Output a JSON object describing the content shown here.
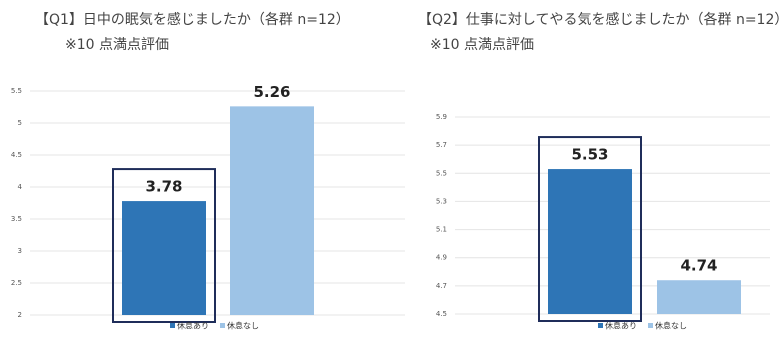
{
  "chart_data": [
    {
      "type": "bar",
      "title": "【Q1】日中の眠気を感じましたか（各群 n=12）",
      "subtitle": "※10 点満点評価",
      "categories": [
        null
      ],
      "series": [
        {
          "name": "休息あり",
          "color": "#2e75b6",
          "values": [
            3.78
          ]
        },
        {
          "name": "休息なし",
          "color": "#9dc3e6",
          "values": [
            5.26
          ]
        }
      ],
      "ylim": [
        2,
        5.5
      ],
      "yticks": [
        2,
        2.5,
        3,
        3.5,
        4,
        4.5,
        5,
        5.5
      ],
      "grid": true
    },
    {
      "type": "bar",
      "title": "【Q2】仕事に対してやる気を感じましたか（各群 n=12）",
      "subtitle": "※10 点満点評価",
      "categories": [
        null
      ],
      "series": [
        {
          "name": "休息あり",
          "color": "#2e75b6",
          "values": [
            5.53
          ]
        },
        {
          "name": "休息なし",
          "color": "#9dc3e6",
          "values": [
            4.74
          ]
        }
      ],
      "ylim": [
        4.5,
        5.9
      ],
      "yticks": [
        4.5,
        4.7,
        4.9,
        5.1,
        5.3,
        5.5,
        5.7,
        5.9
      ],
      "grid": true
    }
  ]
}
